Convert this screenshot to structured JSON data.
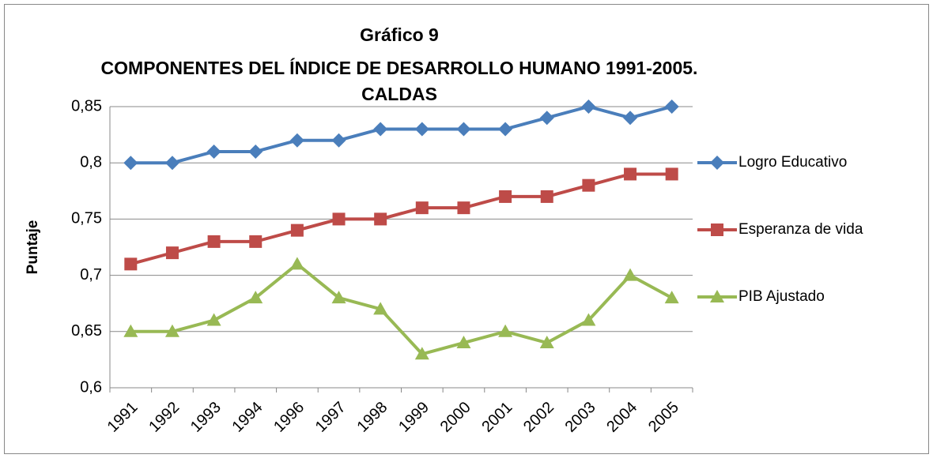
{
  "chart_data": {
    "type": "line",
    "title": [
      "Gráfico 9",
      "COMPONENTES DEL ÍNDICE DE DESARROLLO HUMANO 1991-2005.",
      "CALDAS"
    ],
    "ylabel": "Puntaje",
    "categories": [
      "1991",
      "1992",
      "1993",
      "1994",
      "1996",
      "1997",
      "1998",
      "1999",
      "2000",
      "2001",
      "2002",
      "2003",
      "2004",
      "2005"
    ],
    "series": [
      {
        "name": "Logro Educativo",
        "color": "#4a7ebb",
        "marker": "diamond",
        "values": [
          0.8,
          0.8,
          0.81,
          0.81,
          0.82,
          0.82,
          0.83,
          0.83,
          0.83,
          0.83,
          0.84,
          0.85,
          0.84,
          0.85
        ]
      },
      {
        "name": "Esperanza de vida",
        "color": "#be4b48",
        "marker": "square",
        "values": [
          0.71,
          0.72,
          0.73,
          0.73,
          0.74,
          0.75,
          0.75,
          0.76,
          0.76,
          0.77,
          0.77,
          0.78,
          0.79,
          0.79
        ]
      },
      {
        "name": "PIB Ajustado",
        "color": "#98b954",
        "marker": "triangle",
        "values": [
          0.65,
          0.65,
          0.66,
          0.68,
          0.71,
          0.68,
          0.67,
          0.63,
          0.64,
          0.65,
          0.64,
          0.66,
          0.7,
          0.68
        ]
      }
    ],
    "ylim": [
      0.6,
      0.85
    ],
    "yticks": [
      {
        "value": 0.6,
        "label": "0,6"
      },
      {
        "value": 0.65,
        "label": "0,65"
      },
      {
        "value": 0.7,
        "label": "0,7"
      },
      {
        "value": 0.75,
        "label": "0,75"
      },
      {
        "value": 0.8,
        "label": "0,8"
      },
      {
        "value": 0.85,
        "label": "0,85"
      }
    ],
    "grid": true,
    "legend": "right"
  }
}
